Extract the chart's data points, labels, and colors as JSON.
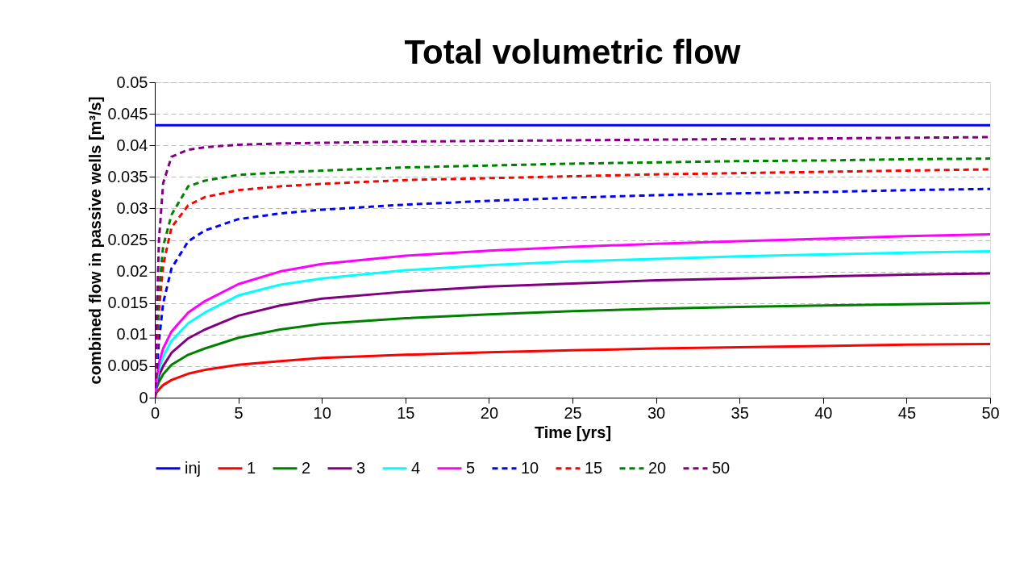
{
  "chart_data": {
    "type": "line",
    "title": "Total volumetric flow",
    "xlabel": "Time [yrs]",
    "ylabel": "combined flow in passive wells [m³/s]",
    "x": [
      0,
      0.1,
      0.25,
      0.5,
      1,
      2,
      3,
      5,
      7.5,
      10,
      15,
      20,
      25,
      30,
      35,
      40,
      45,
      50
    ],
    "xlim": [
      0,
      50
    ],
    "xticks": [
      0,
      5,
      10,
      15,
      20,
      25,
      30,
      35,
      40,
      45,
      50
    ],
    "ylim": [
      0,
      0.05
    ],
    "yticks": [
      0,
      0.005,
      0.01,
      0.015,
      0.02,
      0.025,
      0.03,
      0.035,
      0.04,
      0.045,
      0.05
    ],
    "grid": "y",
    "legend": "bottom",
    "marker": "none",
    "series": [
      {
        "name": "inj",
        "color": "#0000ff",
        "line_style": "solid",
        "values": [
          0.0432,
          0.0432,
          0.0432,
          0.0432,
          0.0432,
          0.0432,
          0.0432,
          0.0432,
          0.0432,
          0.0432,
          0.0432,
          0.0432,
          0.0432,
          0.0432,
          0.0432,
          0.0432,
          0.0432,
          0.0432
        ]
      },
      {
        "name": "1",
        "color": "#ff0000",
        "line_style": "solid",
        "values": [
          0,
          0.0008,
          0.0013,
          0.002,
          0.0028,
          0.0038,
          0.0044,
          0.0052,
          0.0058,
          0.0063,
          0.0068,
          0.0072,
          0.0075,
          0.0078,
          0.008,
          0.0082,
          0.0084,
          0.0085
        ]
      },
      {
        "name": "2",
        "color": "#008000",
        "line_style": "solid",
        "values": [
          0,
          0.0015,
          0.0025,
          0.0037,
          0.0052,
          0.0068,
          0.0078,
          0.0095,
          0.0108,
          0.0117,
          0.0126,
          0.0132,
          0.0137,
          0.0141,
          0.0144,
          0.0146,
          0.0148,
          0.015
        ]
      },
      {
        "name": "3",
        "color": "#800080",
        "line_style": "solid",
        "values": [
          0,
          0.002,
          0.0035,
          0.005,
          0.0071,
          0.0094,
          0.0108,
          0.013,
          0.0146,
          0.0157,
          0.0168,
          0.0176,
          0.0181,
          0.0186,
          0.0189,
          0.0192,
          0.0195,
          0.0197
        ]
      },
      {
        "name": "4",
        "color": "#00ffff",
        "line_style": "solid",
        "values": [
          0,
          0.0025,
          0.0045,
          0.0065,
          0.009,
          0.0118,
          0.0135,
          0.0162,
          0.0179,
          0.0189,
          0.0202,
          0.021,
          0.0216,
          0.022,
          0.0224,
          0.0227,
          0.023,
          0.0232
        ]
      },
      {
        "name": "5",
        "color": "#ff00ff",
        "line_style": "solid",
        "values": [
          0,
          0.003,
          0.0055,
          0.0078,
          0.0105,
          0.0135,
          0.0153,
          0.018,
          0.02,
          0.0212,
          0.0225,
          0.0233,
          0.0239,
          0.0244,
          0.0248,
          0.0252,
          0.0256,
          0.0259
        ]
      },
      {
        "name": "10",
        "color": "#0000ff",
        "line_style": "dashed",
        "values": [
          0,
          0.004,
          0.009,
          0.015,
          0.0205,
          0.0248,
          0.0265,
          0.0283,
          0.0292,
          0.0298,
          0.0306,
          0.0312,
          0.0317,
          0.0321,
          0.0324,
          0.0326,
          0.0329,
          0.0331
        ]
      },
      {
        "name": "15",
        "color": "#ff0000",
        "line_style": "dashed",
        "values": [
          0,
          0.006,
          0.014,
          0.021,
          0.027,
          0.0305,
          0.0318,
          0.0329,
          0.0335,
          0.0339,
          0.0345,
          0.0348,
          0.0351,
          0.0354,
          0.0356,
          0.0358,
          0.036,
          0.0362
        ]
      },
      {
        "name": "20",
        "color": "#008000",
        "line_style": "dashed",
        "values": [
          0,
          0.008,
          0.017,
          0.024,
          0.029,
          0.0335,
          0.0344,
          0.0353,
          0.0357,
          0.036,
          0.0365,
          0.0368,
          0.0371,
          0.0373,
          0.0375,
          0.0376,
          0.0378,
          0.0379
        ]
      },
      {
        "name": "50",
        "color": "#800080",
        "line_style": "dashed",
        "values": [
          0,
          0.012,
          0.025,
          0.034,
          0.0382,
          0.0393,
          0.0397,
          0.0401,
          0.0403,
          0.0404,
          0.0406,
          0.0407,
          0.0408,
          0.0409,
          0.041,
          0.0411,
          0.0412,
          0.0413
        ]
      }
    ]
  }
}
